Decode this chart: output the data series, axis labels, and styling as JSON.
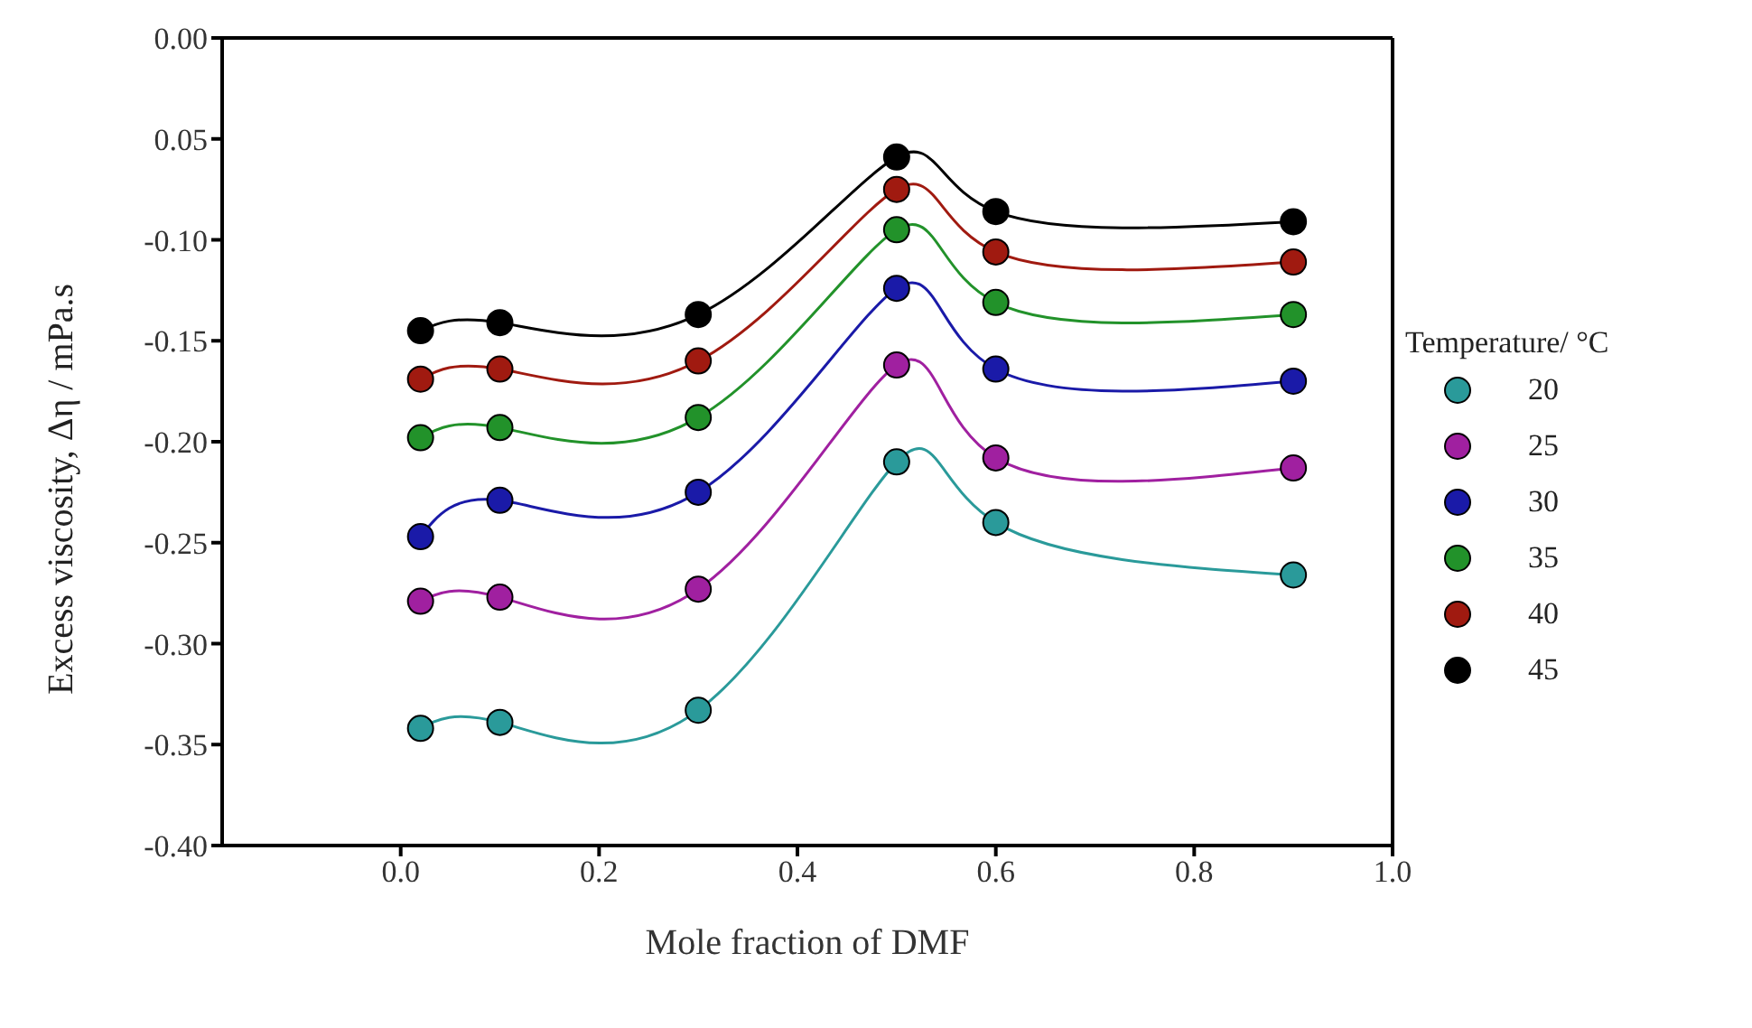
{
  "chart_data": {
    "type": "line",
    "xlabel": "Mole fraction of DMF",
    "ylabel": "Excess viscosity, Δη / mPa.s",
    "legend_title": "Temperature/ °C",
    "x": [
      0.02,
      0.1,
      0.3,
      0.5,
      0.6,
      0.9
    ],
    "series": [
      {
        "name": "20",
        "color": "#2a9a9a",
        "values": [
          -0.342,
          -0.339,
          -0.333,
          -0.21,
          -0.24,
          -0.266
        ]
      },
      {
        "name": "25",
        "color": "#a020a0",
        "values": [
          -0.279,
          -0.277,
          -0.273,
          -0.162,
          -0.208,
          -0.213
        ]
      },
      {
        "name": "30",
        "color": "#1a1aa8",
        "values": [
          -0.247,
          -0.229,
          -0.225,
          -0.124,
          -0.164,
          -0.17
        ]
      },
      {
        "name": "35",
        "color": "#22922a",
        "values": [
          -0.198,
          -0.193,
          -0.188,
          -0.095,
          -0.131,
          -0.137
        ]
      },
      {
        "name": "40",
        "color": "#a01a10",
        "values": [
          -0.169,
          -0.164,
          -0.16,
          -0.075,
          -0.106,
          -0.111
        ]
      },
      {
        "name": "45",
        "color": "#000000",
        "values": [
          -0.145,
          -0.141,
          -0.137,
          -0.059,
          -0.086,
          -0.091
        ]
      }
    ],
    "xlim": [
      -0.18,
      1.0
    ],
    "xticks": [
      {
        "value": 0,
        "label": "0.0"
      },
      {
        "value": 0.2,
        "label": "0.2"
      },
      {
        "value": 0.4,
        "label": "0.4"
      },
      {
        "value": 0.6,
        "label": "0.6"
      },
      {
        "value": 0.8,
        "label": "0.8"
      },
      {
        "value": 1.0,
        "label": "1.0"
      }
    ],
    "ylim": [
      -0.4,
      0.0
    ],
    "yticks": [
      {
        "value": 0,
        "label": "0.00"
      },
      {
        "value": -0.05,
        "label": "0.05"
      },
      {
        "value": -0.1,
        "label": "-0.10"
      },
      {
        "value": -0.15,
        "label": "-0.15"
      },
      {
        "value": -0.2,
        "label": "-0.20"
      },
      {
        "value": -0.25,
        "label": "-0.25"
      },
      {
        "value": -0.3,
        "label": "-0.30"
      },
      {
        "value": -0.35,
        "label": "-0.35"
      },
      {
        "value": -0.4,
        "label": "-0.40"
      }
    ],
    "grid": false,
    "legend": "right",
    "marker": "circle",
    "line_style": "solid"
  }
}
